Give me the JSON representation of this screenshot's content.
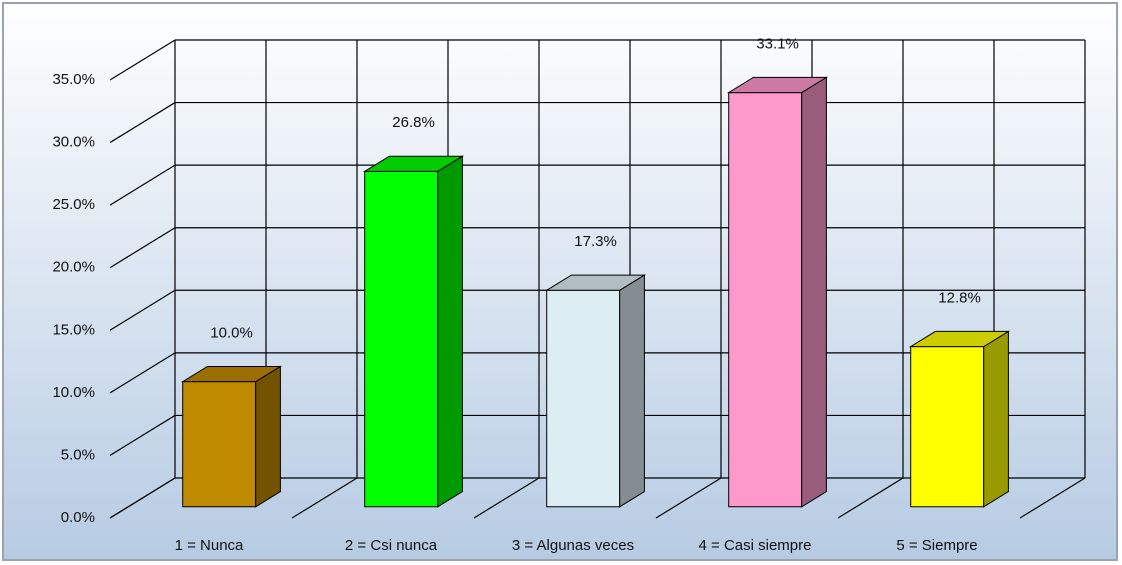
{
  "chart_data": {
    "type": "bar3d",
    "categories": [
      "1 = Nunca",
      "2 = Csi nunca",
      "3 = Algunas veces",
      "4 = Casi siempre",
      "5 = Siempre"
    ],
    "values": [
      10.0,
      26.8,
      17.3,
      33.1,
      12.8
    ],
    "value_labels": [
      "10.0%",
      "26.8%",
      "17.3%",
      "33.1%",
      "12.8%"
    ],
    "colors": [
      "#c08a00",
      "#00ff00",
      "#dcedf4",
      "#ff99cc",
      "#ffff00"
    ],
    "ylim": [
      0,
      35
    ],
    "yticks": [
      {
        "value": 0,
        "label": "0.0%"
      },
      {
        "value": 5,
        "label": "5.0%"
      },
      {
        "value": 10,
        "label": "10.0%"
      },
      {
        "value": 15,
        "label": "15.0%"
      },
      {
        "value": 20,
        "label": "20.0%"
      },
      {
        "value": 25,
        "label": "25.0%"
      },
      {
        "value": 30,
        "label": "30.0%"
      },
      {
        "value": 35,
        "label": "35.0%"
      }
    ],
    "grid": true
  }
}
